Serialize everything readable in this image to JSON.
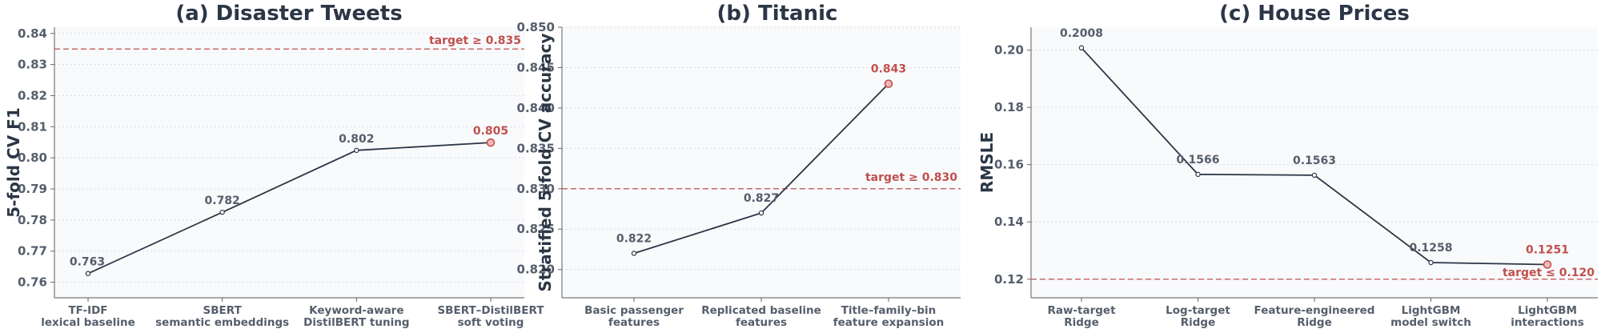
{
  "chart_data": [
    {
      "type": "line",
      "title": "(a) Disaster Tweets",
      "ylabel": "5-fold CV F1",
      "xlabel": "",
      "categories": [
        [
          "TF-IDF",
          "lexical baseline"
        ],
        [
          "SBERT",
          "semantic embeddings"
        ],
        [
          "Keyword-aware",
          "DistilBERT tuning"
        ],
        [
          "SBERT–DistilBERT",
          "soft voting"
        ]
      ],
      "values": [
        0.7628,
        0.7825,
        0.8024,
        0.8049
      ],
      "value_labels": [
        "0.763",
        "0.782",
        "0.802",
        "0.805"
      ],
      "ylim": [
        0.755,
        0.842
      ],
      "yticks": [
        0.76,
        0.77,
        0.78,
        0.79,
        0.8,
        0.81,
        0.82,
        0.83,
        0.84
      ],
      "ytick_labels": [
        "0.76",
        "0.77",
        "0.78",
        "0.79",
        "0.80",
        "0.81",
        "0.82",
        "0.83",
        "0.84"
      ],
      "target": {
        "value": 0.835,
        "label": "target ≥ 0.835",
        "color": "#c0504d"
      },
      "line_color": "#2b3646",
      "highlight_color": "#c0504d",
      "grid": true
    },
    {
      "type": "line",
      "title": "(b) Titanic",
      "ylabel": "Stratified 5-fold CV accuracy",
      "xlabel": "",
      "categories": [
        [
          "Basic passenger",
          "features"
        ],
        [
          "Replicated baseline",
          "features"
        ],
        [
          "Title–family–bin",
          "feature expansion"
        ]
      ],
      "values": [
        0.822,
        0.827,
        0.843
      ],
      "value_labels": [
        "0.822",
        "0.827",
        "0.843"
      ],
      "ylim": [
        0.8165,
        0.85
      ],
      "yticks": [
        0.82,
        0.825,
        0.83,
        0.835,
        0.84,
        0.845,
        0.85
      ],
      "ytick_labels": [
        "0.820",
        "0.825",
        "0.830",
        "0.835",
        "0.840",
        "0.845",
        "0.850"
      ],
      "target": {
        "value": 0.83,
        "label": "target ≥ 0.830",
        "color": "#c0504d"
      },
      "line_color": "#2b3646",
      "highlight_color": "#c0504d",
      "grid": true
    },
    {
      "type": "line",
      "title": "(c) House Prices",
      "ylabel": "RMSLE",
      "xlabel": "",
      "categories": [
        [
          "Raw-target",
          "Ridge"
        ],
        [
          "Log-target",
          "Ridge"
        ],
        [
          "Feature-engineered",
          "Ridge"
        ],
        [
          "LightGBM",
          "model switch"
        ],
        [
          "LightGBM",
          "interactions"
        ]
      ],
      "values": [
        0.2008,
        0.1566,
        0.1563,
        0.1258,
        0.1251
      ],
      "value_labels": [
        "0.2008",
        "0.1566",
        "0.1563",
        "0.1258",
        "0.1251"
      ],
      "ylim": [
        0.1135,
        0.208
      ],
      "yticks": [
        0.12,
        0.14,
        0.16,
        0.18,
        0.2
      ],
      "ytick_labels": [
        "0.12",
        "0.14",
        "0.16",
        "0.18",
        "0.20"
      ],
      "target": {
        "value": 0.12,
        "label": "target ≤ 0.120",
        "color": "#c0504d"
      },
      "line_color": "#2b3646",
      "highlight_color": "#c0504d",
      "grid": true
    }
  ]
}
